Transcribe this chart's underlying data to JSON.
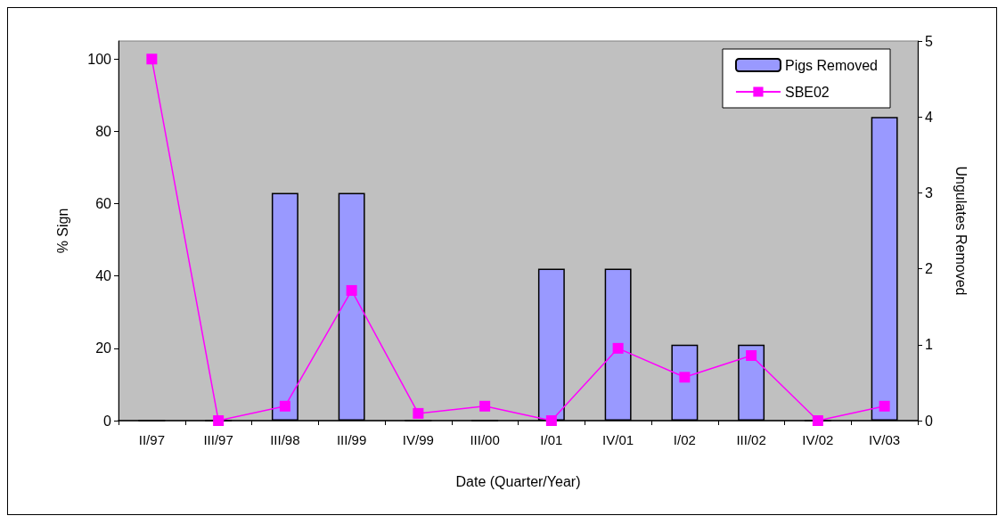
{
  "chart_data": {
    "type": "bar",
    "categories": [
      "II/97",
      "III/97",
      "III/98",
      "III/99",
      "IV/99",
      "III/00",
      "I/01",
      "IV/01",
      "I/02",
      "III/02",
      "IV/02",
      "IV/03"
    ],
    "xlabel": "Date (Quarter/Year)",
    "ylabel": "% Sign",
    "y2label": "Ungulates Removed",
    "series": [
      {
        "name": "Pigs Removed",
        "axis": "y2",
        "color": "#9999ff",
        "values": [
          0,
          0,
          3,
          3,
          0,
          0,
          2,
          2,
          1,
          1,
          0,
          4
        ]
      },
      {
        "name": "SBE02",
        "type": "line",
        "color": "#ff00ff",
        "marker": "square",
        "values": [
          100,
          0,
          4,
          36,
          2,
          4,
          0,
          20,
          12,
          18,
          0,
          4
        ]
      }
    ],
    "ylim": [
      0,
      105
    ],
    "yticks": [
      0,
      20,
      40,
      60,
      80,
      100
    ],
    "y2lim": [
      0,
      5
    ],
    "y2ticks": [
      0,
      1,
      2,
      3,
      4,
      5
    ],
    "grid": false,
    "legend": "top right"
  }
}
